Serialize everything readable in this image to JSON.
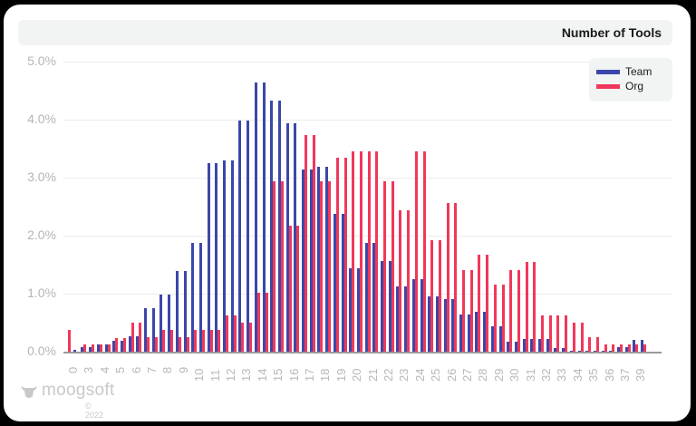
{
  "chart_data": {
    "type": "bar",
    "title": "Number of Tools",
    "xlabel": "",
    "ylabel": "",
    "ylim": [
      0,
      5.0
    ],
    "y_ticks": [
      "0.0%",
      "1.0%",
      "2.0%",
      "3.0%",
      "4.0%",
      "5.0%"
    ],
    "grid": true,
    "legend_position": "top-right",
    "categories": [
      "0",
      "3",
      "4",
      "5",
      "6",
      "7",
      "8",
      "9",
      "10",
      "11",
      "12",
      "13",
      "14",
      "15",
      "16",
      "17",
      "18",
      "19",
      "20",
      "21",
      "22",
      "23",
      "24",
      "25",
      "26",
      "27",
      "28",
      "29",
      "30",
      "31",
      "32",
      "33",
      "34",
      "35",
      "36",
      "37",
      "39"
    ],
    "series": [
      {
        "name": "Team",
        "color": "#3b47a8",
        "values": [
          0.03,
          0.08,
          0.13,
          0.18,
          0.27,
          0.75,
          0.99,
          1.39,
          1.88,
          3.25,
          3.3,
          3.99,
          4.64,
          4.33,
          3.93,
          3.14,
          3.18,
          2.38,
          1.43,
          1.88,
          1.57,
          1.12,
          1.25,
          0.95,
          0.91,
          0.64,
          0.68,
          0.44,
          0.17,
          0.22,
          0.22,
          0.06,
          0.02,
          0.02,
          0.02,
          0.08,
          0.2
        ]
      },
      {
        "name": "Org",
        "color": "#f0385a",
        "values": [
          0.38,
          0.13,
          0.13,
          0.24,
          0.5,
          0.25,
          0.38,
          0.25,
          0.38,
          0.38,
          0.62,
          0.5,
          1.02,
          2.94,
          2.17,
          3.73,
          2.94,
          3.34,
          3.46,
          3.46,
          2.94,
          2.43,
          3.46,
          1.92,
          2.56,
          1.41,
          1.67,
          1.15,
          1.41,
          1.54,
          0.62,
          0.62,
          0.5,
          0.25,
          0.13,
          0.13,
          0.13
        ]
      }
    ]
  },
  "header": {
    "title": "Number of Tools"
  },
  "legend": [
    {
      "label": "Team",
      "color": "#3b47a8"
    },
    {
      "label": "Org",
      "color": "#f0385a"
    }
  ],
  "footer": {
    "brand": "moogsoft",
    "copyright": "© 2022"
  }
}
